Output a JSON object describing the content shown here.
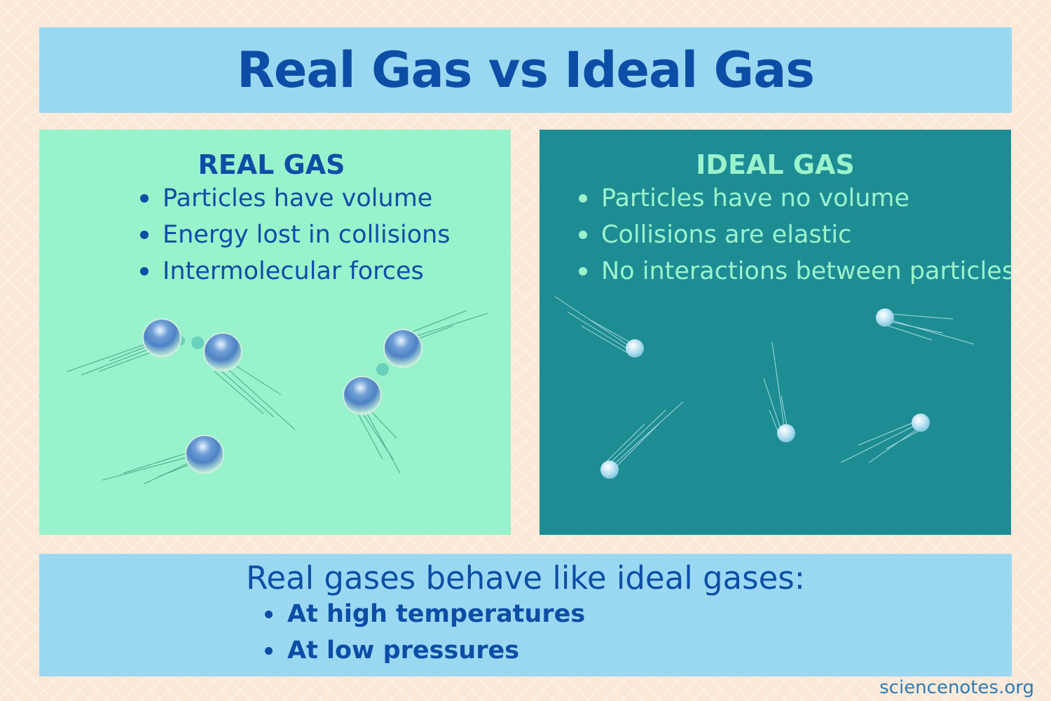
{
  "title": "Real Gas vs Ideal Gas",
  "real_gas": {
    "heading": "REAL GAS",
    "bullets": [
      "Particles have volume",
      "Energy lost in collisions",
      "Intermolecular forces"
    ]
  },
  "ideal_gas": {
    "heading": "IDEAL GAS",
    "bullets": [
      "Particles have no volume",
      "Collisions are elastic",
      "No interactions between particles"
    ]
  },
  "summary": {
    "lead": "Real gases behave like ideal gases:",
    "conditions": [
      "At high temperatures",
      "At low pressures"
    ]
  },
  "credit": "sciencenotes.org",
  "colors": {
    "title_text": "#0c4ea6",
    "real_panel": "#98f2cb",
    "ideal_panel": "#1e8c93",
    "banner": "#9ad8f2",
    "ideal_text": "#9af3cd",
    "background": "#fbe8d6"
  }
}
